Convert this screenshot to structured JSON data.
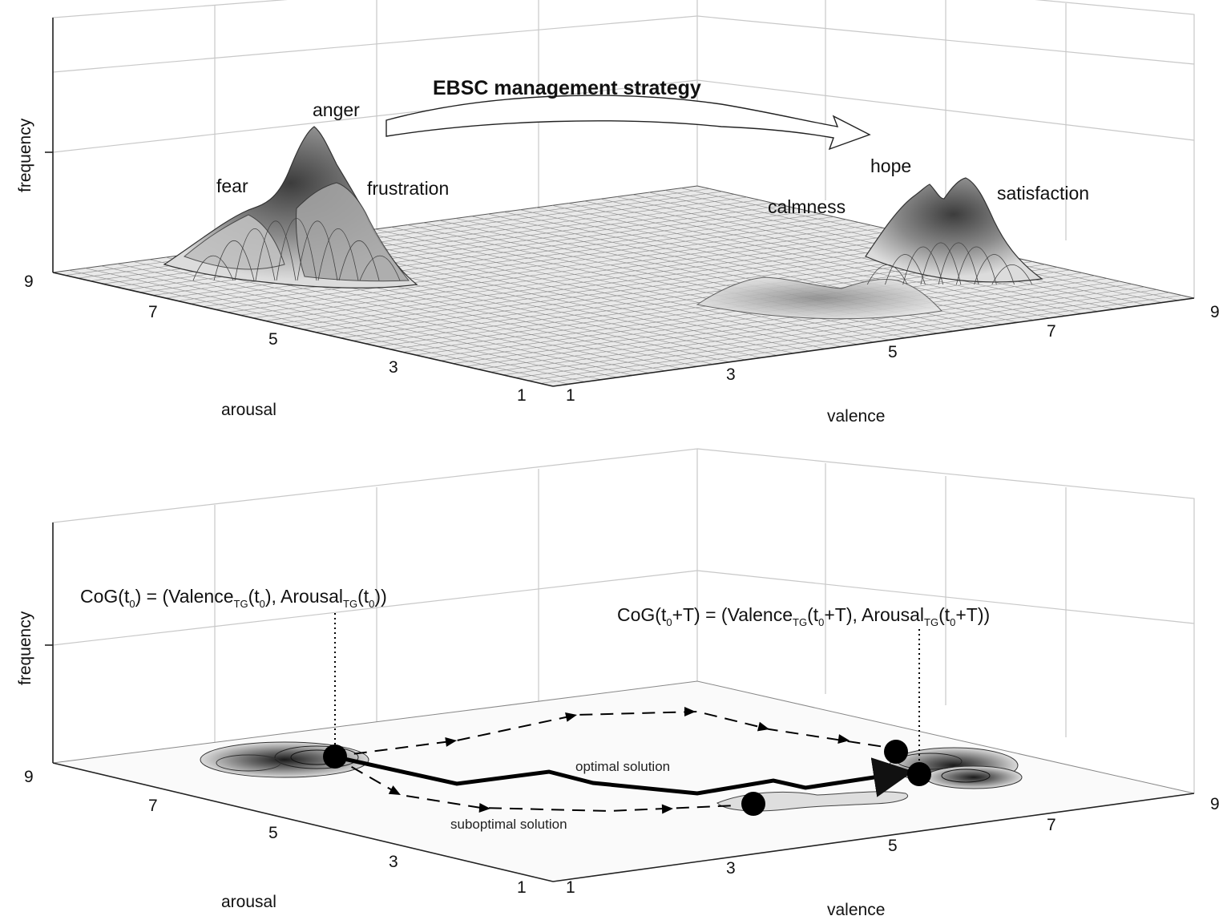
{
  "panels": [
    {
      "id": "top",
      "z_label": "frequency",
      "arousal_label": "arousal",
      "valence_label": "valence",
      "arousal_ticks": [
        "9",
        "7",
        "5",
        "3",
        "1"
      ],
      "valence_ticks": [
        "1",
        "3",
        "5",
        "7",
        "9"
      ],
      "arrow_label": "EBSC management strategy",
      "emotions": [
        "anger",
        "fear",
        "frustration",
        "hope",
        "calmness",
        "satisfaction"
      ]
    },
    {
      "id": "bottom",
      "z_label": "frequency",
      "arousal_label": "arousal",
      "valence_label": "valence",
      "arousal_ticks": [
        "9",
        "7",
        "5",
        "3",
        "1"
      ],
      "valence_ticks": [
        "1",
        "3",
        "5",
        "7",
        "9"
      ],
      "cog_start": {
        "a": "CoG(t",
        "a_sub": "0",
        "b": ") = (Valence",
        "b_sub": "TG",
        "c": "(t",
        "c_sub": "0",
        "d": "), Arousal",
        "d_sub": "TG",
        "e": "(t",
        "e_sub": "0",
        "f": "))"
      },
      "cog_end": {
        "a": "CoG(t",
        "a_sub": "0",
        "b": "+T) = (Valence",
        "b_sub": "TG",
        "c": "(t",
        "c_sub": "0",
        "d": "+T), Arousal",
        "d_sub": "TG",
        "e": "(t",
        "e_sub": "0",
        "f": "+T))"
      },
      "optimal_label": "optimal solution",
      "suboptimal_label": "suboptimal solution"
    }
  ],
  "colors": {
    "peak_dark": "#4a4a4a",
    "peak_light": "#d9d9d9",
    "mesh": "#7a7a7a",
    "grid": "#c8c8c8"
  }
}
